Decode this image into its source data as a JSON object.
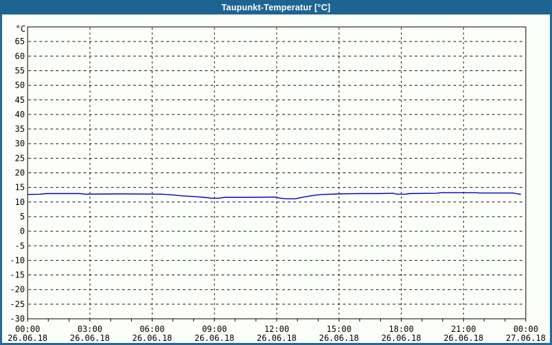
{
  "window": {
    "title": "Taupunkt-Temperatur [°C]"
  },
  "colors": {
    "titlebar": "#1e6493",
    "border": "#24689a",
    "background": "#fcfefa",
    "plot_background": "#fcfefa",
    "axis": "#000000",
    "grid": "#1a1a1a",
    "line": "#0000c0",
    "title_text": "#ffffff",
    "label_text": "#000000"
  },
  "chart_data": {
    "type": "line",
    "title": "Taupunkt-Temperatur [°C]",
    "unit_label": "°C",
    "ylim": [
      -30,
      70
    ],
    "xlim_hours": [
      0,
      24
    ],
    "grid": true,
    "y_tick_step": 5,
    "y_ticks": [
      65,
      60,
      55,
      50,
      45,
      40,
      35,
      30,
      25,
      20,
      15,
      10,
      5,
      0,
      -5,
      -10,
      -15,
      -20,
      -25,
      -30
    ],
    "x_ticks": [
      {
        "hour": 0,
        "time": "00:00",
        "date": "26.06.18"
      },
      {
        "hour": 3,
        "time": "03:00",
        "date": "26.06.18"
      },
      {
        "hour": 6,
        "time": "06:00",
        "date": "26.06.18"
      },
      {
        "hour": 9,
        "time": "09:00",
        "date": "26.06.18"
      },
      {
        "hour": 12,
        "time": "12:00",
        "date": "26.06.18"
      },
      {
        "hour": 15,
        "time": "15:00",
        "date": "26.06.18"
      },
      {
        "hour": 18,
        "time": "18:00",
        "date": "26.06.18"
      },
      {
        "hour": 21,
        "time": "21:00",
        "date": "26.06.18"
      },
      {
        "hour": 24,
        "time": "00:00",
        "date": "27.06.18"
      }
    ],
    "minor_x_tick_every_hours": 1,
    "series": [
      {
        "label": "Taupunkt-Temperatur",
        "color": "#0000c0",
        "points": [
          [
            0.0,
            12.6
          ],
          [
            0.6,
            12.7
          ],
          [
            0.9,
            12.9
          ],
          [
            2.5,
            12.9
          ],
          [
            2.8,
            12.7
          ],
          [
            4.5,
            12.8
          ],
          [
            6.5,
            12.7
          ],
          [
            7.0,
            12.4
          ],
          [
            7.5,
            12.1
          ],
          [
            8.0,
            11.9
          ],
          [
            8.5,
            11.6
          ],
          [
            8.9,
            11.3
          ],
          [
            9.2,
            11.3
          ],
          [
            9.5,
            11.6
          ],
          [
            10.5,
            11.6
          ],
          [
            11.9,
            11.7
          ],
          [
            12.2,
            11.3
          ],
          [
            12.5,
            11.1
          ],
          [
            12.9,
            11.1
          ],
          [
            13.3,
            11.7
          ],
          [
            13.8,
            12.3
          ],
          [
            14.2,
            12.6
          ],
          [
            15.0,
            12.8
          ],
          [
            16.0,
            12.9
          ],
          [
            17.0,
            12.9
          ],
          [
            17.6,
            13.0
          ],
          [
            17.8,
            12.7
          ],
          [
            18.2,
            12.7
          ],
          [
            18.4,
            12.9
          ],
          [
            19.7,
            13.0
          ],
          [
            19.9,
            13.2
          ],
          [
            21.6,
            13.2
          ],
          [
            21.8,
            13.1
          ],
          [
            23.4,
            13.1
          ],
          [
            23.6,
            12.8
          ],
          [
            23.75,
            12.7
          ]
        ]
      }
    ]
  }
}
